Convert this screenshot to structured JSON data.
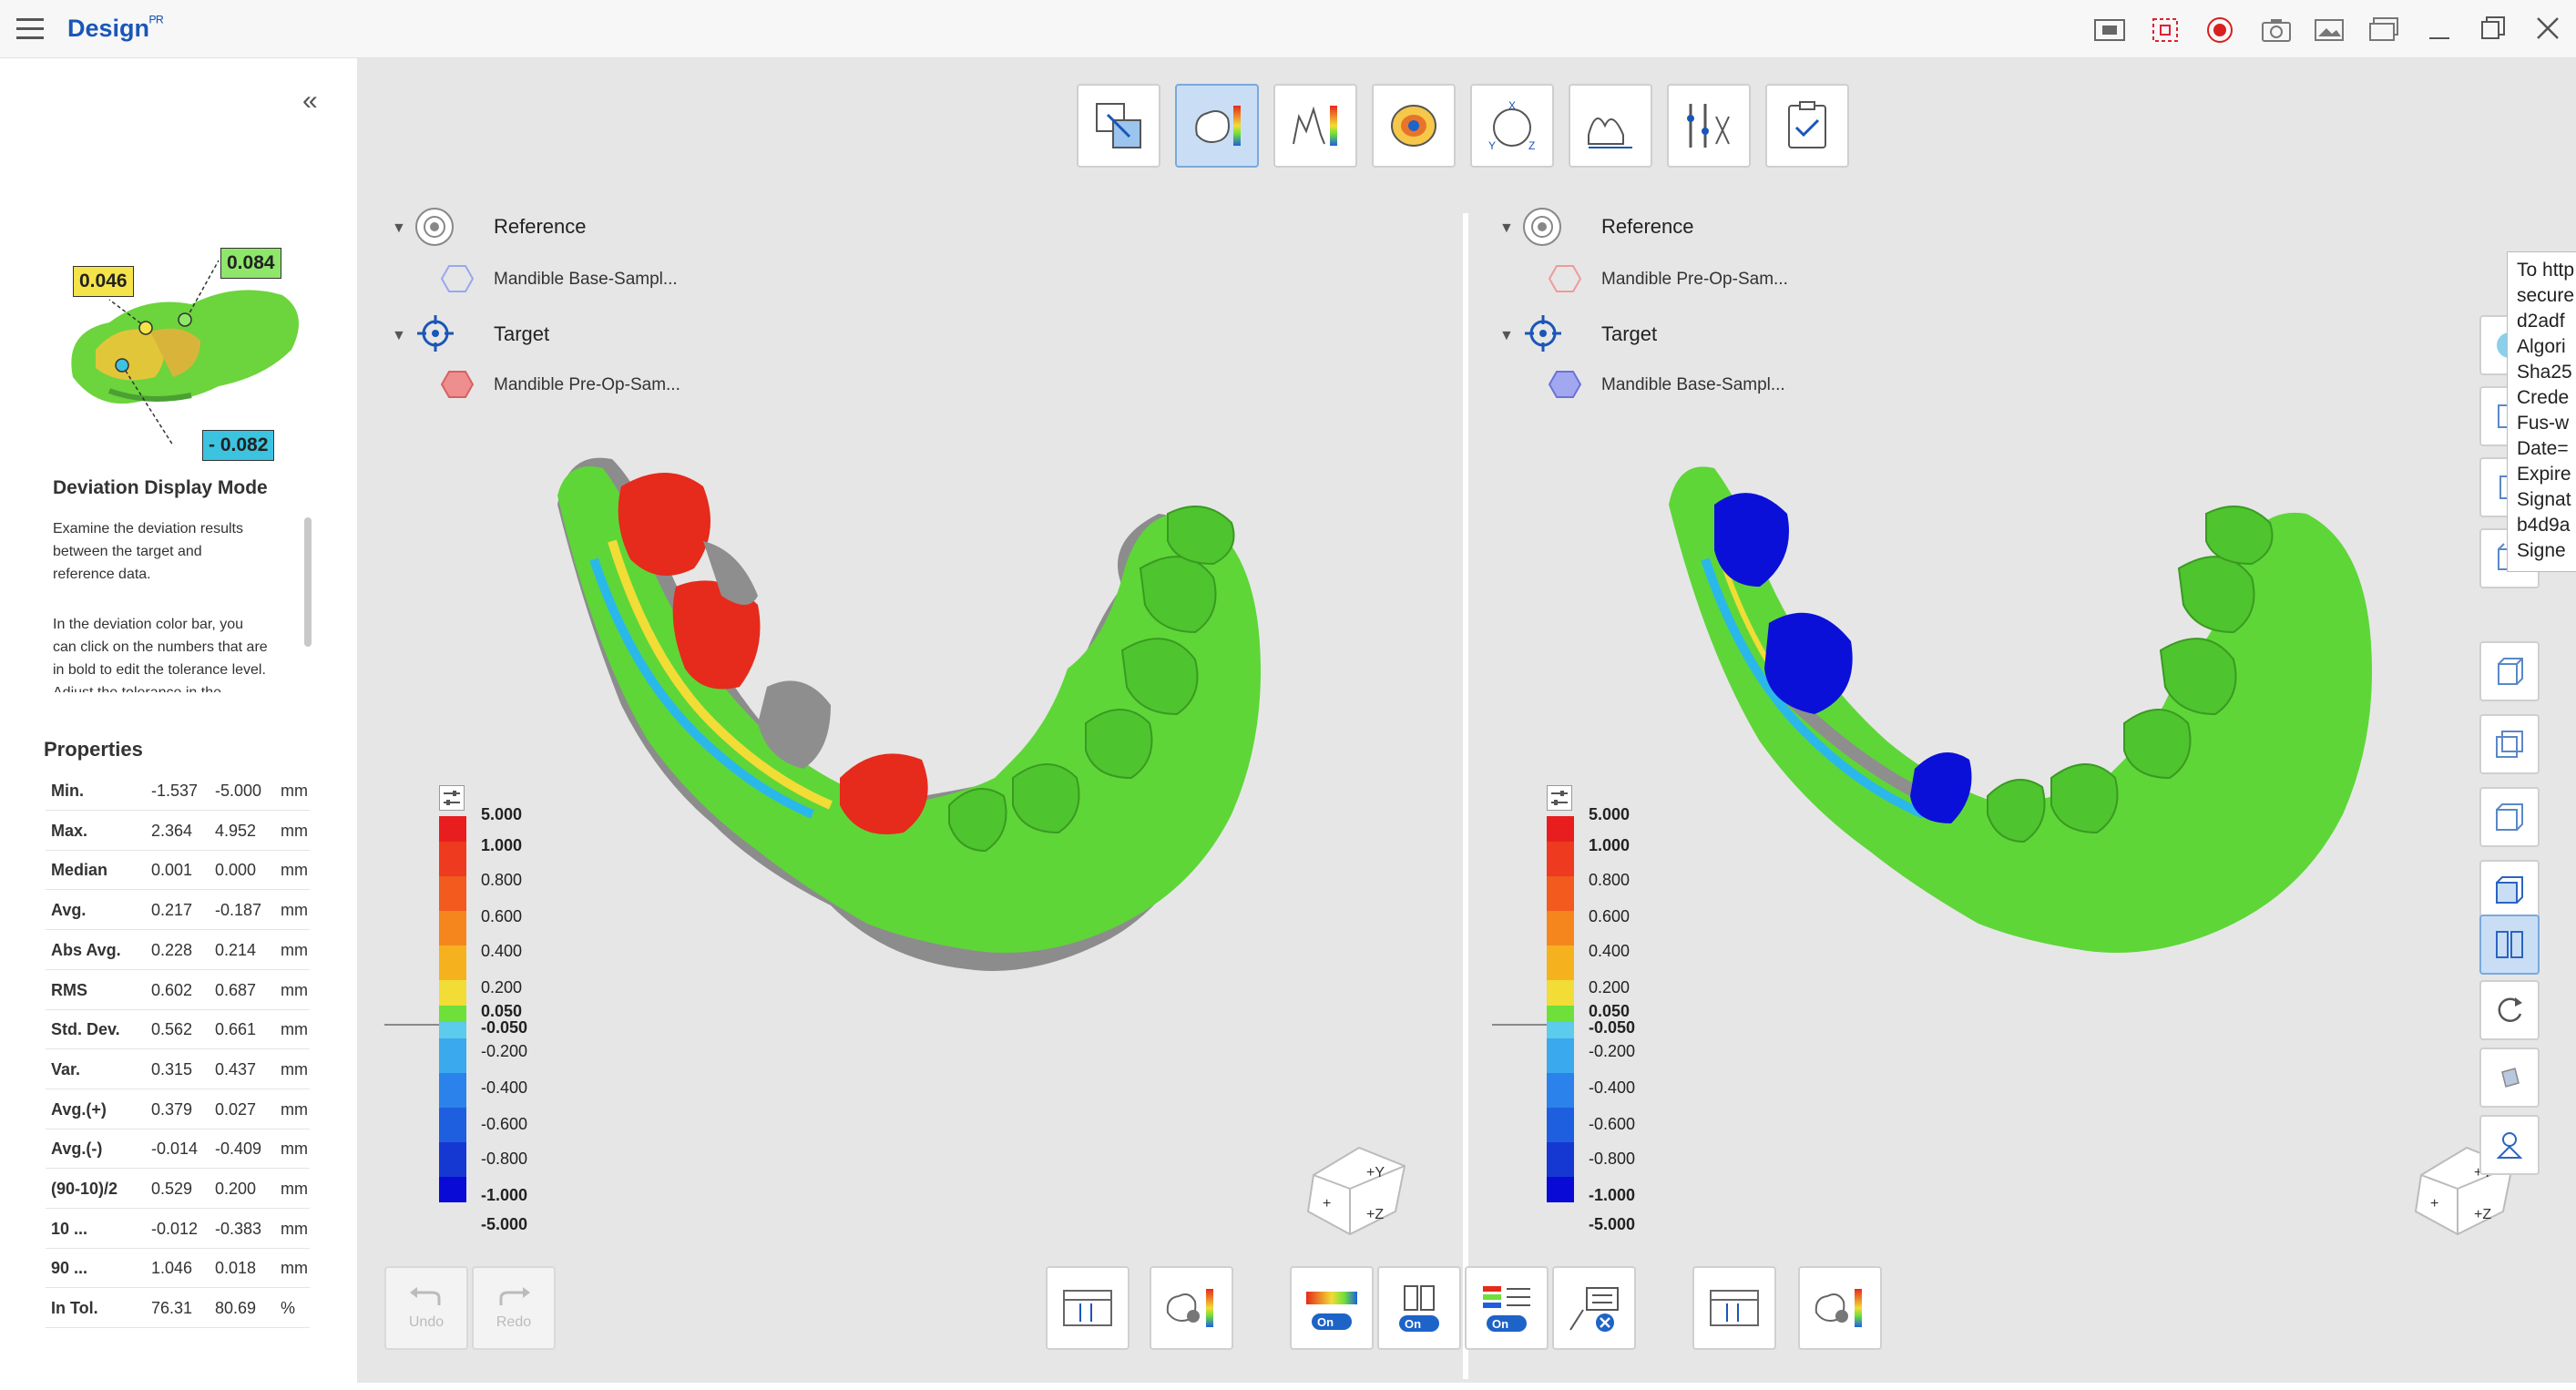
{
  "titlebar": {
    "app_title": "Design",
    "title_badge": "ᴾᴿ"
  },
  "sidebar": {
    "callouts": [
      "0.046",
      "0.084",
      "- 0.082"
    ],
    "mode_title": "Deviation Display Mode",
    "desc_1": "Examine the deviation results",
    "desc_2": "between the target and",
    "desc_3": "reference data.",
    "desc_4": "In the deviation color bar, you",
    "desc_5": "can click on the numbers that are",
    "desc_6": "in bold to edit the tolerance level.",
    "desc_7": "Adjust the tolerance in the",
    "properties_title": "Properties",
    "properties": [
      {
        "name": "Min.",
        "v1": "-1.537",
        "v2": "-5.000",
        "unit": "mm"
      },
      {
        "name": "Max.",
        "v1": "2.364",
        "v2": "4.952",
        "unit": "mm"
      },
      {
        "name": "Median",
        "v1": "0.001",
        "v2": "0.000",
        "unit": "mm"
      },
      {
        "name": "Avg.",
        "v1": "0.217",
        "v2": "-0.187",
        "unit": "mm"
      },
      {
        "name": "Abs Avg.",
        "v1": "0.228",
        "v2": "0.214",
        "unit": "mm"
      },
      {
        "name": "RMS",
        "v1": "0.602",
        "v2": "0.687",
        "unit": "mm"
      },
      {
        "name": "Std. Dev.",
        "v1": "0.562",
        "v2": "0.661",
        "unit": "mm"
      },
      {
        "name": "Var.",
        "v1": "0.315",
        "v2": "0.437",
        "unit": "mm"
      },
      {
        "name": "Avg.(+)",
        "v1": "0.379",
        "v2": "0.027",
        "unit": "mm"
      },
      {
        "name": "Avg.(-)",
        "v1": "-0.014",
        "v2": "-0.409",
        "unit": "mm"
      },
      {
        "name": "(90-10)/2",
        "v1": "0.529",
        "v2": "0.200",
        "unit": "mm"
      },
      {
        "name": "10 ...",
        "v1": "-0.012",
        "v2": "-0.383",
        "unit": "mm"
      },
      {
        "name": "90 ...",
        "v1": "1.046",
        "v2": "0.018",
        "unit": "mm"
      },
      {
        "name": "In Tol.",
        "v1": "76.31",
        "v2": "80.69",
        "unit": "%"
      }
    ]
  },
  "left_panel": {
    "reference_label": "Reference",
    "reference_item": "Mandible Base-Sampl...",
    "target_label": "Target",
    "target_item": "Mandible Pre-Op-Sam..."
  },
  "right_panel": {
    "reference_label": "Reference",
    "reference_item": "Mandible Pre-Op-Sam...",
    "target_label": "Target",
    "target_item": "Mandible Base-Sampl..."
  },
  "scale_labels": [
    "5.000",
    "1.000",
    "0.800",
    "0.600",
    "0.400",
    "0.200",
    "0.050",
    "-0.050",
    "-0.200",
    "-0.400",
    "-0.600",
    "-0.800",
    "-1.000",
    "-5.000"
  ],
  "scale_bold": [
    true,
    true,
    false,
    false,
    false,
    false,
    true,
    true,
    false,
    false,
    false,
    false,
    true,
    true
  ],
  "scale_colors": [
    "#e81e1e",
    "#ee3a1e",
    "#f25a1e",
    "#f5861e",
    "#f6b21e",
    "#f2dc36",
    "#6ee03a",
    "#5ccbec",
    "#3aa9ee",
    "#2a82ea",
    "#1e5fe0",
    "#1538d2",
    "#0a0ad6"
  ],
  "undo_label": "Undo",
  "redo_label": "Redo",
  "on_label": "On",
  "tooltip_lines": [
    "To http",
    "secure",
    "d2adf",
    "Algori",
    "Sha25",
    "Crede",
    "Fus-w",
    "Date=",
    "Expire",
    "Signat",
    "b4d9a",
    "Signe"
  ],
  "colors": {
    "accent": "#1a56b8",
    "in_tolerance": "#6ee03a",
    "positive": "#e62a1c",
    "negative": "#0a10d8"
  }
}
